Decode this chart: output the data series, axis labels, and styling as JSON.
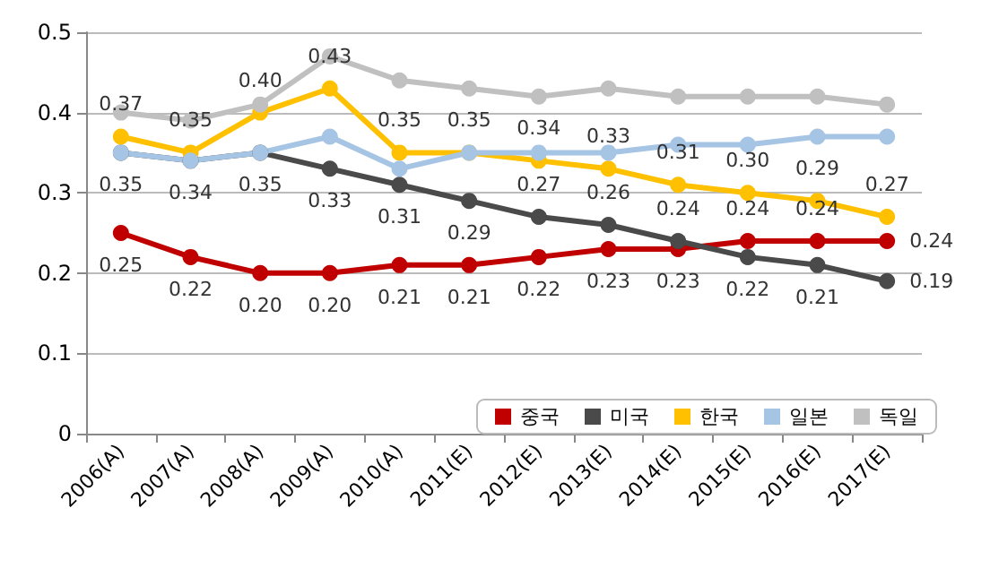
{
  "chart_data": {
    "type": "line",
    "categories": [
      "2006(A)",
      "2007(A)",
      "2008(A)",
      "2009(A)",
      "2010(A)",
      "2011(E)",
      "2012(E)",
      "2013(E)",
      "2014(E)",
      "2015(E)",
      "2016(E)",
      "2017(E)"
    ],
    "series": [
      {
        "name": "중국",
        "color": "#c00000",
        "values": [
          0.25,
          0.22,
          0.2,
          0.2,
          0.21,
          0.21,
          0.22,
          0.23,
          0.23,
          0.24,
          0.24,
          0.24
        ],
        "value_labels": [
          "0.25",
          "0.22",
          "0.20",
          "0.20",
          "0.21",
          "0.21",
          "0.22",
          "0.23",
          "0.23",
          "0.24",
          "0.24",
          "0.24"
        ]
      },
      {
        "name": "미국",
        "color": "#4a4a4a",
        "values": [
          0.35,
          0.34,
          0.35,
          0.33,
          0.31,
          0.29,
          0.27,
          0.26,
          0.24,
          0.22,
          0.21,
          0.19
        ],
        "value_labels": [
          "0.35",
          "0.34",
          "0.35",
          "0.33",
          "0.31",
          "0.29",
          "0.27",
          "0.26",
          "0.24",
          "0.22",
          "0.21",
          "0.19"
        ]
      },
      {
        "name": "한국",
        "color": "#ffc000",
        "values": [
          0.37,
          0.35,
          0.4,
          0.43,
          0.35,
          0.35,
          0.34,
          0.33,
          0.31,
          0.3,
          0.29,
          0.27
        ],
        "value_labels": [
          "0.37",
          "0.35",
          "0.40",
          "0.43",
          "0.35",
          "0.35",
          "0.34",
          "0.33",
          "0.31",
          "0.30",
          "0.29",
          "0.27"
        ]
      },
      {
        "name": "일본",
        "color": "#a6c4e4",
        "values": [
          0.35,
          0.34,
          0.35,
          0.37,
          0.33,
          0.35,
          0.35,
          0.35,
          0.36,
          0.36,
          0.37,
          0.37
        ]
      },
      {
        "name": "독일",
        "color": "#c0c0c0",
        "values": [
          0.4,
          0.39,
          0.41,
          0.47,
          0.44,
          0.43,
          0.42,
          0.43,
          0.42,
          0.42,
          0.42,
          0.41
        ]
      }
    ],
    "ylim": [
      0,
      0.5
    ],
    "yticks": [
      0,
      0.1,
      0.2,
      0.3,
      0.4,
      0.5
    ],
    "grid": "y",
    "legend": "bottom right",
    "marker": "circle",
    "line_style": "solid"
  }
}
